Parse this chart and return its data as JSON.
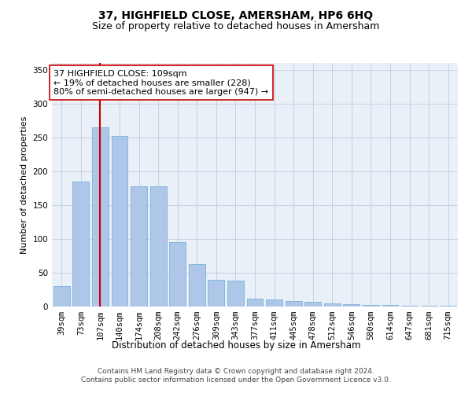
{
  "title": "37, HIGHFIELD CLOSE, AMERSHAM, HP6 6HQ",
  "subtitle": "Size of property relative to detached houses in Amersham",
  "xlabel": "Distribution of detached houses by size in Amersham",
  "ylabel": "Number of detached properties",
  "categories": [
    "39sqm",
    "73sqm",
    "107sqm",
    "140sqm",
    "174sqm",
    "208sqm",
    "242sqm",
    "276sqm",
    "309sqm",
    "343sqm",
    "377sqm",
    "411sqm",
    "445sqm",
    "478sqm",
    "512sqm",
    "546sqm",
    "580sqm",
    "614sqm",
    "647sqm",
    "681sqm",
    "715sqm"
  ],
  "values": [
    30,
    185,
    265,
    252,
    178,
    178,
    95,
    63,
    40,
    38,
    12,
    10,
    8,
    7,
    5,
    4,
    2,
    2,
    1,
    1,
    1
  ],
  "bar_color": "#aec6e8",
  "bar_edge_color": "#6aaad4",
  "vline_x": 2,
  "vline_color": "#cc0000",
  "annotation_text": "37 HIGHFIELD CLOSE: 109sqm\n← 19% of detached houses are smaller (228)\n80% of semi-detached houses are larger (947) →",
  "annotation_box_color": "#ffffff",
  "annotation_box_edge": "#cc0000",
  "ylim": [
    0,
    360
  ],
  "yticks": [
    0,
    50,
    100,
    150,
    200,
    250,
    300,
    350
  ],
  "bg_color": "#eaf0f8",
  "footer": "Contains HM Land Registry data © Crown copyright and database right 2024.\nContains public sector information licensed under the Open Government Licence v3.0.",
  "title_fontsize": 10,
  "subtitle_fontsize": 9,
  "xlabel_fontsize": 8.5,
  "ylabel_fontsize": 8,
  "tick_fontsize": 7.5,
  "annotation_fontsize": 8,
  "footer_fontsize": 6.5
}
